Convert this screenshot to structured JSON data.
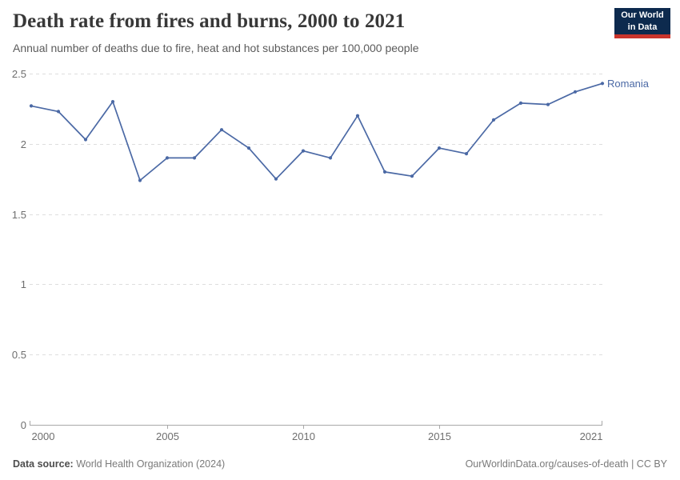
{
  "header": {
    "title": "Death rate from fires and burns, 2000 to 2021",
    "subtitle": "Annual number of deaths due to fire, heat and hot substances per 100,000 people",
    "logo": {
      "line1": "Our World",
      "line2": "in Data",
      "bg_color": "#0d2a4e",
      "accent_color": "#c9342c"
    }
  },
  "chart_data": {
    "type": "line",
    "title": "Death rate from fires and burns, 2000 to 2021",
    "xlabel": "",
    "ylabel": "Annual number of deaths due to fire, heat and hot substances per 100,000 people",
    "x": [
      2000,
      2001,
      2002,
      2003,
      2004,
      2005,
      2006,
      2007,
      2008,
      2009,
      2010,
      2011,
      2012,
      2013,
      2014,
      2015,
      2016,
      2017,
      2018,
      2019,
      2020,
      2021
    ],
    "series": [
      {
        "name": "Romania",
        "color": "#4b69a5",
        "values": [
          2.27,
          2.23,
          2.03,
          2.3,
          1.74,
          1.9,
          1.9,
          2.1,
          1.97,
          1.75,
          1.95,
          1.9,
          2.2,
          1.8,
          1.77,
          1.97,
          1.93,
          2.17,
          2.29,
          2.28,
          2.37,
          2.43
        ]
      }
    ],
    "ylim": [
      0,
      2.5
    ],
    "yticks": [
      0,
      0.5,
      1,
      1.5,
      2,
      2.5
    ],
    "xticks": [
      2000,
      2005,
      2010,
      2015,
      2021
    ],
    "grid": "horizontal-dashed",
    "legend": "line-end-label"
  },
  "footer": {
    "datasource_label": "Data source:",
    "datasource_value": "World Health Organization (2024)",
    "credit": "OurWorldinData.org/causes-of-death | CC BY"
  }
}
